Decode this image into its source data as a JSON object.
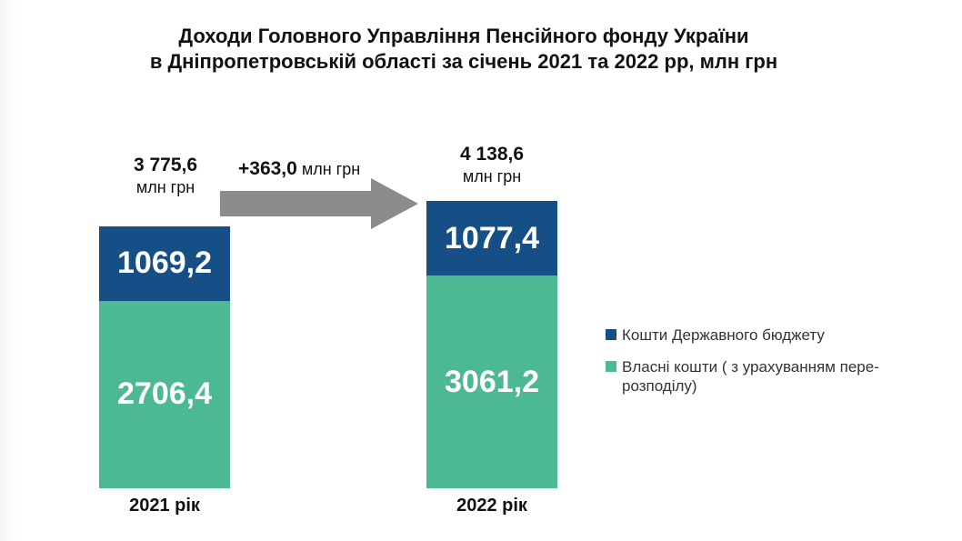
{
  "title": {
    "line1": "Доходи Головного Управління Пенсійного фонду України",
    "line2": "в Дніпропетровській області за січень 2021 та 2022 рр, млн грн"
  },
  "delta": {
    "value": "+363,0",
    "unit": "млн грн"
  },
  "colors": {
    "state_budget": "#164f86",
    "own_funds": "#4db894",
    "arrow": "#8c8c8c"
  },
  "chart_data": {
    "type": "bar",
    "stacked": true,
    "categories": [
      "2021 рік",
      "2022 рік"
    ],
    "series": [
      {
        "name": "Власні кошти ( з урахуванням пере-розподілу)",
        "values": [
          2706.4,
          3061.2
        ],
        "labels": [
          "2706,4",
          "3061,2"
        ]
      },
      {
        "name": "Кошти Державного бюджету",
        "values": [
          1069.2,
          1077.4
        ],
        "labels": [
          "1069,2",
          "1077,4"
        ]
      }
    ],
    "totals": [
      {
        "value": "3 775,6",
        "unit": "млн грн"
      },
      {
        "value": "4 138,6",
        "unit": "млн грн"
      }
    ],
    "legend": {
      "position": "right",
      "items": [
        {
          "label": "Кошти Державного бюджету",
          "color": "#164f86"
        },
        {
          "label_line1": "Власні кошти ( з урахуванням пере-",
          "label_line2": "розподілу)",
          "color": "#4db894"
        }
      ]
    }
  }
}
